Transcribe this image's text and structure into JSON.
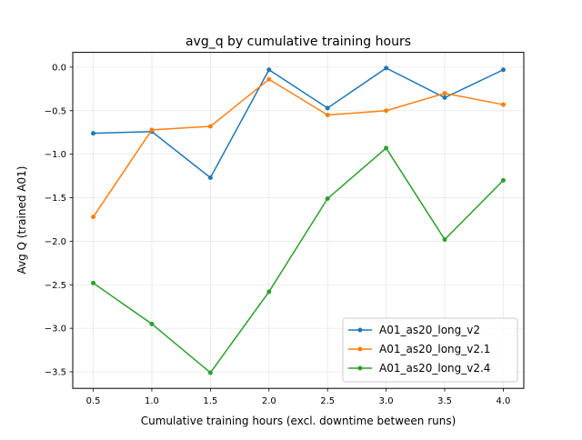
{
  "chart_data": {
    "type": "line",
    "title": "avg_q by cumulative training hours",
    "xlabel": "Cumulative training hours (excl. downtime between runs)",
    "ylabel": "Avg Q (trained A01)",
    "xlim": [
      0.325,
      4.175
    ],
    "ylim": [
      -3.69,
      0.17
    ],
    "xticks": [
      0.5,
      1.0,
      1.5,
      2.0,
      2.5,
      3.0,
      3.5,
      4.0
    ],
    "xtick_labels": [
      "0.5",
      "1.0",
      "1.5",
      "2.0",
      "2.5",
      "3.0",
      "3.5",
      "4.0"
    ],
    "yticks": [
      0.0,
      -0.5,
      -1.0,
      -1.5,
      -2.0,
      -2.5,
      -3.0,
      -3.5
    ],
    "ytick_labels": [
      "0.0",
      "−0.5",
      "−1.0",
      "−1.5",
      "−2.0",
      "−2.5",
      "−3.0",
      "−3.5"
    ],
    "grid": true,
    "legend_position": "lower-right",
    "x": [
      0.5,
      1.0,
      1.5,
      2.0,
      2.5,
      3.0,
      3.5,
      4.0
    ],
    "series": [
      {
        "name": "A01_as20_long_v2",
        "color": "#1f77b4",
        "values": [
          -0.76,
          -0.74,
          -1.27,
          -0.03,
          -0.47,
          -0.01,
          -0.35,
          -0.03
        ]
      },
      {
        "name": "A01_as20_long_v2.1",
        "color": "#ff7f0e",
        "values": [
          -1.72,
          -0.72,
          -0.68,
          -0.14,
          -0.55,
          -0.5,
          -0.3,
          -0.43
        ]
      },
      {
        "name": "A01_as20_long_v2.4",
        "color": "#2ca02c",
        "values": [
          -2.48,
          -2.95,
          -3.51,
          -2.58,
          -1.51,
          -0.93,
          -1.98,
          -1.3
        ]
      }
    ]
  }
}
